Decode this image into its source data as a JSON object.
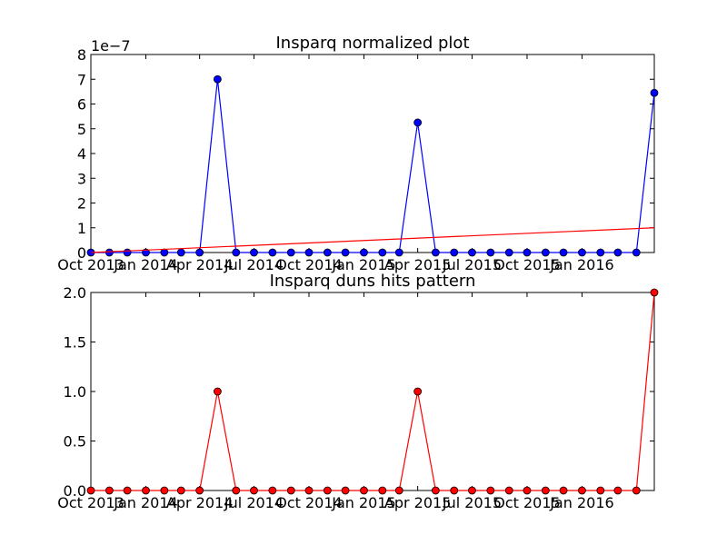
{
  "chart_data": [
    {
      "type": "line",
      "title": "Insparq normalized plot",
      "offset_label": "1e−7",
      "ylim": [
        0,
        8
      ],
      "yticks": [
        "0",
        "1",
        "2",
        "3",
        "4",
        "5",
        "6",
        "7",
        "8"
      ],
      "xtick_labels": [
        "Oct 2013",
        "Jan 2014",
        "Apr 2014",
        "Jul 2014",
        "Oct 2014",
        "Jan 2015",
        "Apr 2015",
        "Jul 2015",
        "Oct 2015",
        "Jan 2016"
      ],
      "x": [
        "2013-10-01",
        "2013-11-01",
        "2013-12-01",
        "2014-01-01",
        "2014-02-01",
        "2014-03-01",
        "2014-04-01",
        "2014-05-01",
        "2014-06-01",
        "2014-07-01",
        "2014-08-01",
        "2014-09-01",
        "2014-10-01",
        "2014-11-01",
        "2014-12-01",
        "2015-01-01",
        "2015-02-01",
        "2015-03-01",
        "2015-04-01",
        "2015-05-01",
        "2015-06-01",
        "2015-07-01",
        "2015-08-01",
        "2015-09-01",
        "2015-10-01",
        "2015-11-01",
        "2015-12-01",
        "2016-01-01",
        "2016-02-01",
        "2016-03-01",
        "2016-04-01",
        "2016-05-01"
      ],
      "series": [
        {
          "color": "#0000ff",
          "marker": "circle",
          "values": [
            0,
            0,
            0,
            0,
            0,
            0,
            0,
            7.0,
            0,
            0,
            0,
            0,
            0,
            0,
            0,
            0,
            0,
            0,
            5.25,
            0,
            0,
            0,
            0,
            0,
            0,
            0,
            0,
            0,
            0,
            0,
            0,
            6.45
          ]
        },
        {
          "color": "#ff0000",
          "marker": "none",
          "values_endpoints": [
            0,
            1.0
          ]
        }
      ]
    },
    {
      "type": "line",
      "title": "Insparq duns hits pattern",
      "ylim": [
        0,
        2.0
      ],
      "yticks": [
        "0.0",
        "0.5",
        "1.0",
        "1.5",
        "2.0"
      ],
      "xtick_labels": [
        "Oct 2013",
        "Jan 2014",
        "Apr 2014",
        "Jul 2014",
        "Oct 2014",
        "Jan 2015",
        "Apr 2015",
        "Jul 2015",
        "Oct 2015",
        "Jan 2016"
      ],
      "x": [
        "2013-10-01",
        "2013-11-01",
        "2013-12-01",
        "2014-01-01",
        "2014-02-01",
        "2014-03-01",
        "2014-04-01",
        "2014-05-01",
        "2014-06-01",
        "2014-07-01",
        "2014-08-01",
        "2014-09-01",
        "2014-10-01",
        "2014-11-01",
        "2014-12-01",
        "2015-01-01",
        "2015-02-01",
        "2015-03-01",
        "2015-04-01",
        "2015-05-01",
        "2015-06-01",
        "2015-07-01",
        "2015-08-01",
        "2015-09-01",
        "2015-10-01",
        "2015-11-01",
        "2015-12-01",
        "2016-01-01",
        "2016-02-01",
        "2016-03-01",
        "2016-04-01",
        "2016-05-01"
      ],
      "series": [
        {
          "color": "#ff0000",
          "marker": "circle",
          "values": [
            0,
            0,
            0,
            0,
            0,
            0,
            0,
            1,
            0,
            0,
            0,
            0,
            0,
            0,
            0,
            0,
            0,
            0,
            1,
            0,
            0,
            0,
            0,
            0,
            0,
            0,
            0,
            0,
            0,
            0,
            0,
            2
          ]
        }
      ]
    }
  ]
}
